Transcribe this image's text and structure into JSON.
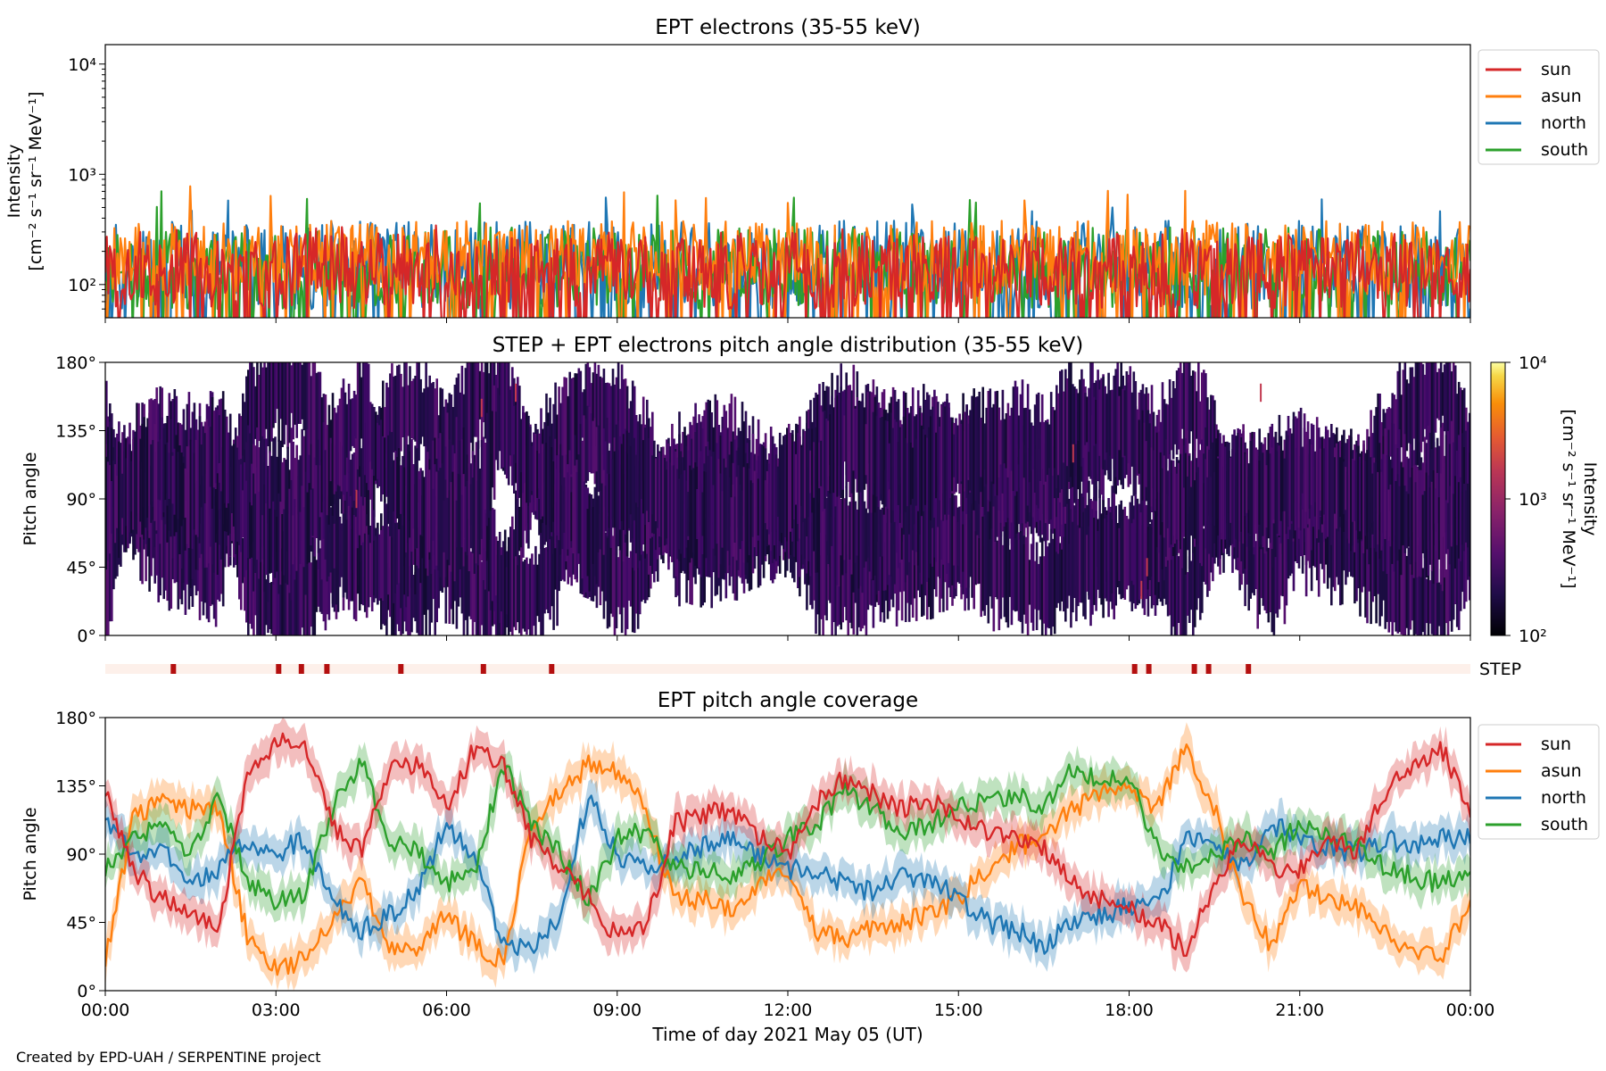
{
  "figure": {
    "credit": "Created by EPD-UAH / SERPENTINE project",
    "xlabel": "Time of day 2021 May 05 (UT)",
    "xticks": [
      "00:00",
      "03:00",
      "06:00",
      "09:00",
      "12:00",
      "15:00",
      "18:00",
      "21:00",
      "00:00"
    ]
  },
  "colors": {
    "sun": "#d62728",
    "asun": "#ff7f0e",
    "north": "#1f77b4",
    "south": "#2ca02c",
    "step_bar": "#b40f0f",
    "step_bg": "#fdf0ea"
  },
  "chart_data": [
    {
      "type": "line",
      "title": "EPT electrons (35-55 keV)",
      "ylabel": "Intensity",
      "yunits": "[cm⁻² s⁻¹ sr⁻¹ MeV⁻¹]",
      "yscale": "log",
      "ylim": [
        50,
        15000
      ],
      "yticks": [
        "10²",
        "10³",
        "10⁴"
      ],
      "xlim_hours": [
        0,
        24
      ],
      "legend": "right-top",
      "series": [
        {
          "name": "sun",
          "typical_range": [
            60,
            300
          ],
          "peak": 380
        },
        {
          "name": "asun",
          "typical_range": [
            80,
            380
          ],
          "peak": 780
        },
        {
          "name": "north",
          "typical_range": [
            60,
            380
          ],
          "peak": 640
        },
        {
          "name": "south",
          "typical_range": [
            60,
            330
          ],
          "peak": 720
        }
      ]
    },
    {
      "type": "heatmap",
      "title": "STEP + EPT electrons pitch angle distribution (35-55 keV)",
      "ylabel": "Pitch angle",
      "ylim": [
        0,
        180
      ],
      "yticks": [
        "0°",
        "45°",
        "90°",
        "135°",
        "180°"
      ],
      "colorbar": {
        "label": "Intensity",
        "units": "[cm⁻² s⁻¹ sr⁻¹ MeV⁻¹]",
        "scale": "log",
        "range": [
          100,
          10000
        ],
        "ticks": [
          "10²",
          "10³",
          "10⁴"
        ],
        "colormap": "inferno"
      },
      "step_label": "STEP",
      "step_hours": [
        1.15,
        3.0,
        3.4,
        3.85,
        5.15,
        6.6,
        7.8,
        18.05,
        18.3,
        19.1,
        19.35,
        20.05
      ]
    },
    {
      "type": "line",
      "title": "EPT pitch angle coverage",
      "ylabel": "Pitch angle",
      "ylim": [
        0,
        180
      ],
      "yticks": [
        "0°",
        "45°",
        "90°",
        "135°",
        "180°"
      ],
      "legend": "right-top",
      "series": [
        {
          "name": "sun",
          "x": [
            0,
            0.5,
            1,
            1.5,
            2,
            2.5,
            3,
            3.5,
            4,
            4.5,
            5,
            5.5,
            6,
            6.5,
            7,
            7.5,
            8,
            8.5,
            9,
            9.5,
            10,
            10.5,
            11,
            11.5,
            12,
            12.5,
            13,
            13.5,
            14,
            14.5,
            15,
            15.5,
            16,
            16.5,
            17,
            17.5,
            18,
            18.5,
            19,
            19.5,
            20,
            20.5,
            21,
            21.5,
            22,
            22.5,
            23,
            23.5,
            24
          ],
          "y": [
            130,
            80,
            60,
            50,
            45,
            140,
            165,
            160,
            110,
            90,
            145,
            150,
            120,
            160,
            150,
            100,
            80,
            60,
            35,
            40,
            110,
            115,
            120,
            100,
            90,
            125,
            140,
            130,
            120,
            125,
            115,
            105,
            100,
            95,
            70,
            60,
            55,
            45,
            25,
            70,
            100,
            80,
            80,
            100,
            90,
            130,
            150,
            160,
            120
          ]
        },
        {
          "name": "asun",
          "x": [
            0,
            0.5,
            1,
            1.5,
            2,
            2.5,
            3,
            3.5,
            4,
            4.5,
            5,
            5.5,
            6,
            6.5,
            7,
            7.5,
            8,
            8.5,
            9,
            9.5,
            10,
            10.5,
            11,
            11.5,
            12,
            12.5,
            13,
            13.5,
            14,
            14.5,
            15,
            15.5,
            16,
            16.5,
            17,
            17.5,
            18,
            18.5,
            19,
            19.5,
            20,
            20.5,
            21,
            21.5,
            22,
            22.5,
            23,
            23.5,
            24
          ],
          "y": [
            20,
            115,
            125,
            120,
            120,
            35,
            15,
            20,
            50,
            70,
            30,
            25,
            50,
            30,
            20,
            110,
            130,
            150,
            145,
            120,
            60,
            60,
            55,
            70,
            80,
            40,
            35,
            40,
            45,
            50,
            60,
            80,
            95,
            100,
            120,
            130,
            135,
            120,
            160,
            120,
            60,
            30,
            70,
            60,
            55,
            40,
            25,
            20,
            60
          ]
        },
        {
          "name": "north",
          "x": [
            0,
            0.5,
            1,
            1.5,
            2,
            2.5,
            3,
            3.5,
            4,
            4.5,
            5,
            5.5,
            6,
            6.5,
            7,
            7.5,
            8,
            8.5,
            9,
            9.5,
            10,
            10.5,
            11,
            11.5,
            12,
            12.5,
            13,
            13.5,
            14,
            14.5,
            15,
            15.5,
            16,
            16.5,
            17,
            17.5,
            18,
            18.5,
            19,
            19.5,
            20,
            20.5,
            21,
            21.5,
            22,
            22.5,
            23,
            23.5,
            24
          ],
          "y": [
            110,
            90,
            95,
            70,
            80,
            100,
            90,
            100,
            60,
            40,
            50,
            65,
            110,
            90,
            30,
            25,
            50,
            130,
            90,
            80,
            90,
            95,
            100,
            90,
            80,
            80,
            70,
            65,
            75,
            75,
            60,
            45,
            40,
            30,
            45,
            50,
            55,
            55,
            100,
            100,
            80,
            110,
            100,
            95,
            90,
            100,
            95,
            100,
            100
          ]
        },
        {
          "name": "south",
          "x": [
            0,
            0.5,
            1,
            1.5,
            2,
            2.5,
            3,
            3.5,
            4,
            4.5,
            5,
            5.5,
            6,
            6.5,
            7,
            7.5,
            8,
            8.5,
            9,
            9.5,
            10,
            10.5,
            11,
            11.5,
            12,
            12.5,
            13,
            13.5,
            14,
            14.5,
            15,
            15.5,
            16,
            16.5,
            17,
            17.5,
            18,
            18.5,
            19,
            19.5,
            20,
            20.5,
            21,
            21.5,
            22,
            22.5,
            23,
            23.5,
            24
          ],
          "y": [
            80,
            100,
            110,
            90,
            130,
            70,
            60,
            65,
            120,
            150,
            100,
            90,
            70,
            80,
            150,
            110,
            90,
            60,
            100,
            105,
            80,
            80,
            75,
            85,
            100,
            110,
            130,
            120,
            105,
            110,
            120,
            125,
            130,
            120,
            145,
            140,
            140,
            95,
            80,
            90,
            100,
            90,
            110,
            100,
            95,
            80,
            75,
            70,
            80
          ]
        }
      ]
    }
  ]
}
